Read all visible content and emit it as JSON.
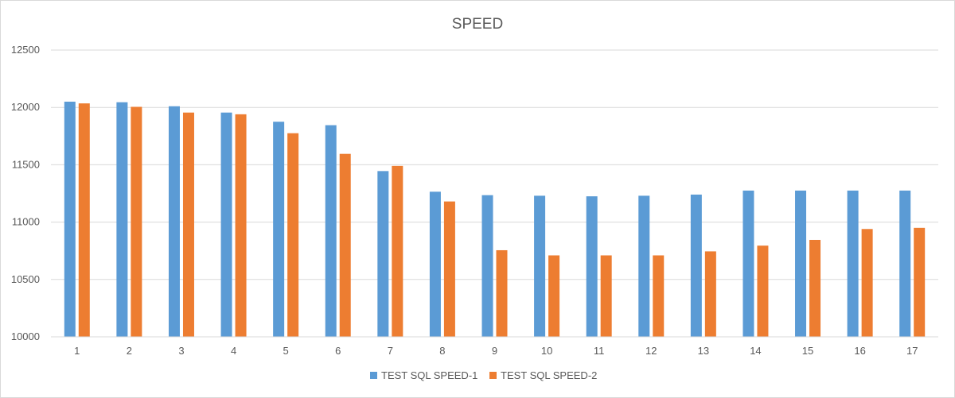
{
  "chart_data": {
    "type": "bar",
    "title": "SPEED",
    "xlabel": "",
    "ylabel": "",
    "categories": [
      "1",
      "2",
      "3",
      "4",
      "5",
      "6",
      "7",
      "8",
      "9",
      "10",
      "11",
      "12",
      "13",
      "14",
      "15",
      "16",
      "17"
    ],
    "series": [
      {
        "name": "TEST SQL SPEED-1",
        "color": "#5b9bd5",
        "values": [
          12050,
          12045,
          12010,
          11955,
          11875,
          11845,
          11445,
          11265,
          11235,
          11230,
          11225,
          11230,
          11240,
          11275,
          11275,
          11275,
          11275
        ]
      },
      {
        "name": "TEST SQL SPEED-2",
        "color": "#ed7d31",
        "values": [
          12035,
          12005,
          11955,
          11940,
          11775,
          11595,
          11490,
          11180,
          10755,
          10710,
          10710,
          10710,
          10745,
          10795,
          10845,
          10940,
          10950
        ]
      }
    ],
    "ylim": [
      10000,
      12500
    ],
    "yticks": [
      10000,
      10500,
      11000,
      11500,
      12000,
      12500
    ],
    "grid": true,
    "legend_position": "bottom"
  }
}
